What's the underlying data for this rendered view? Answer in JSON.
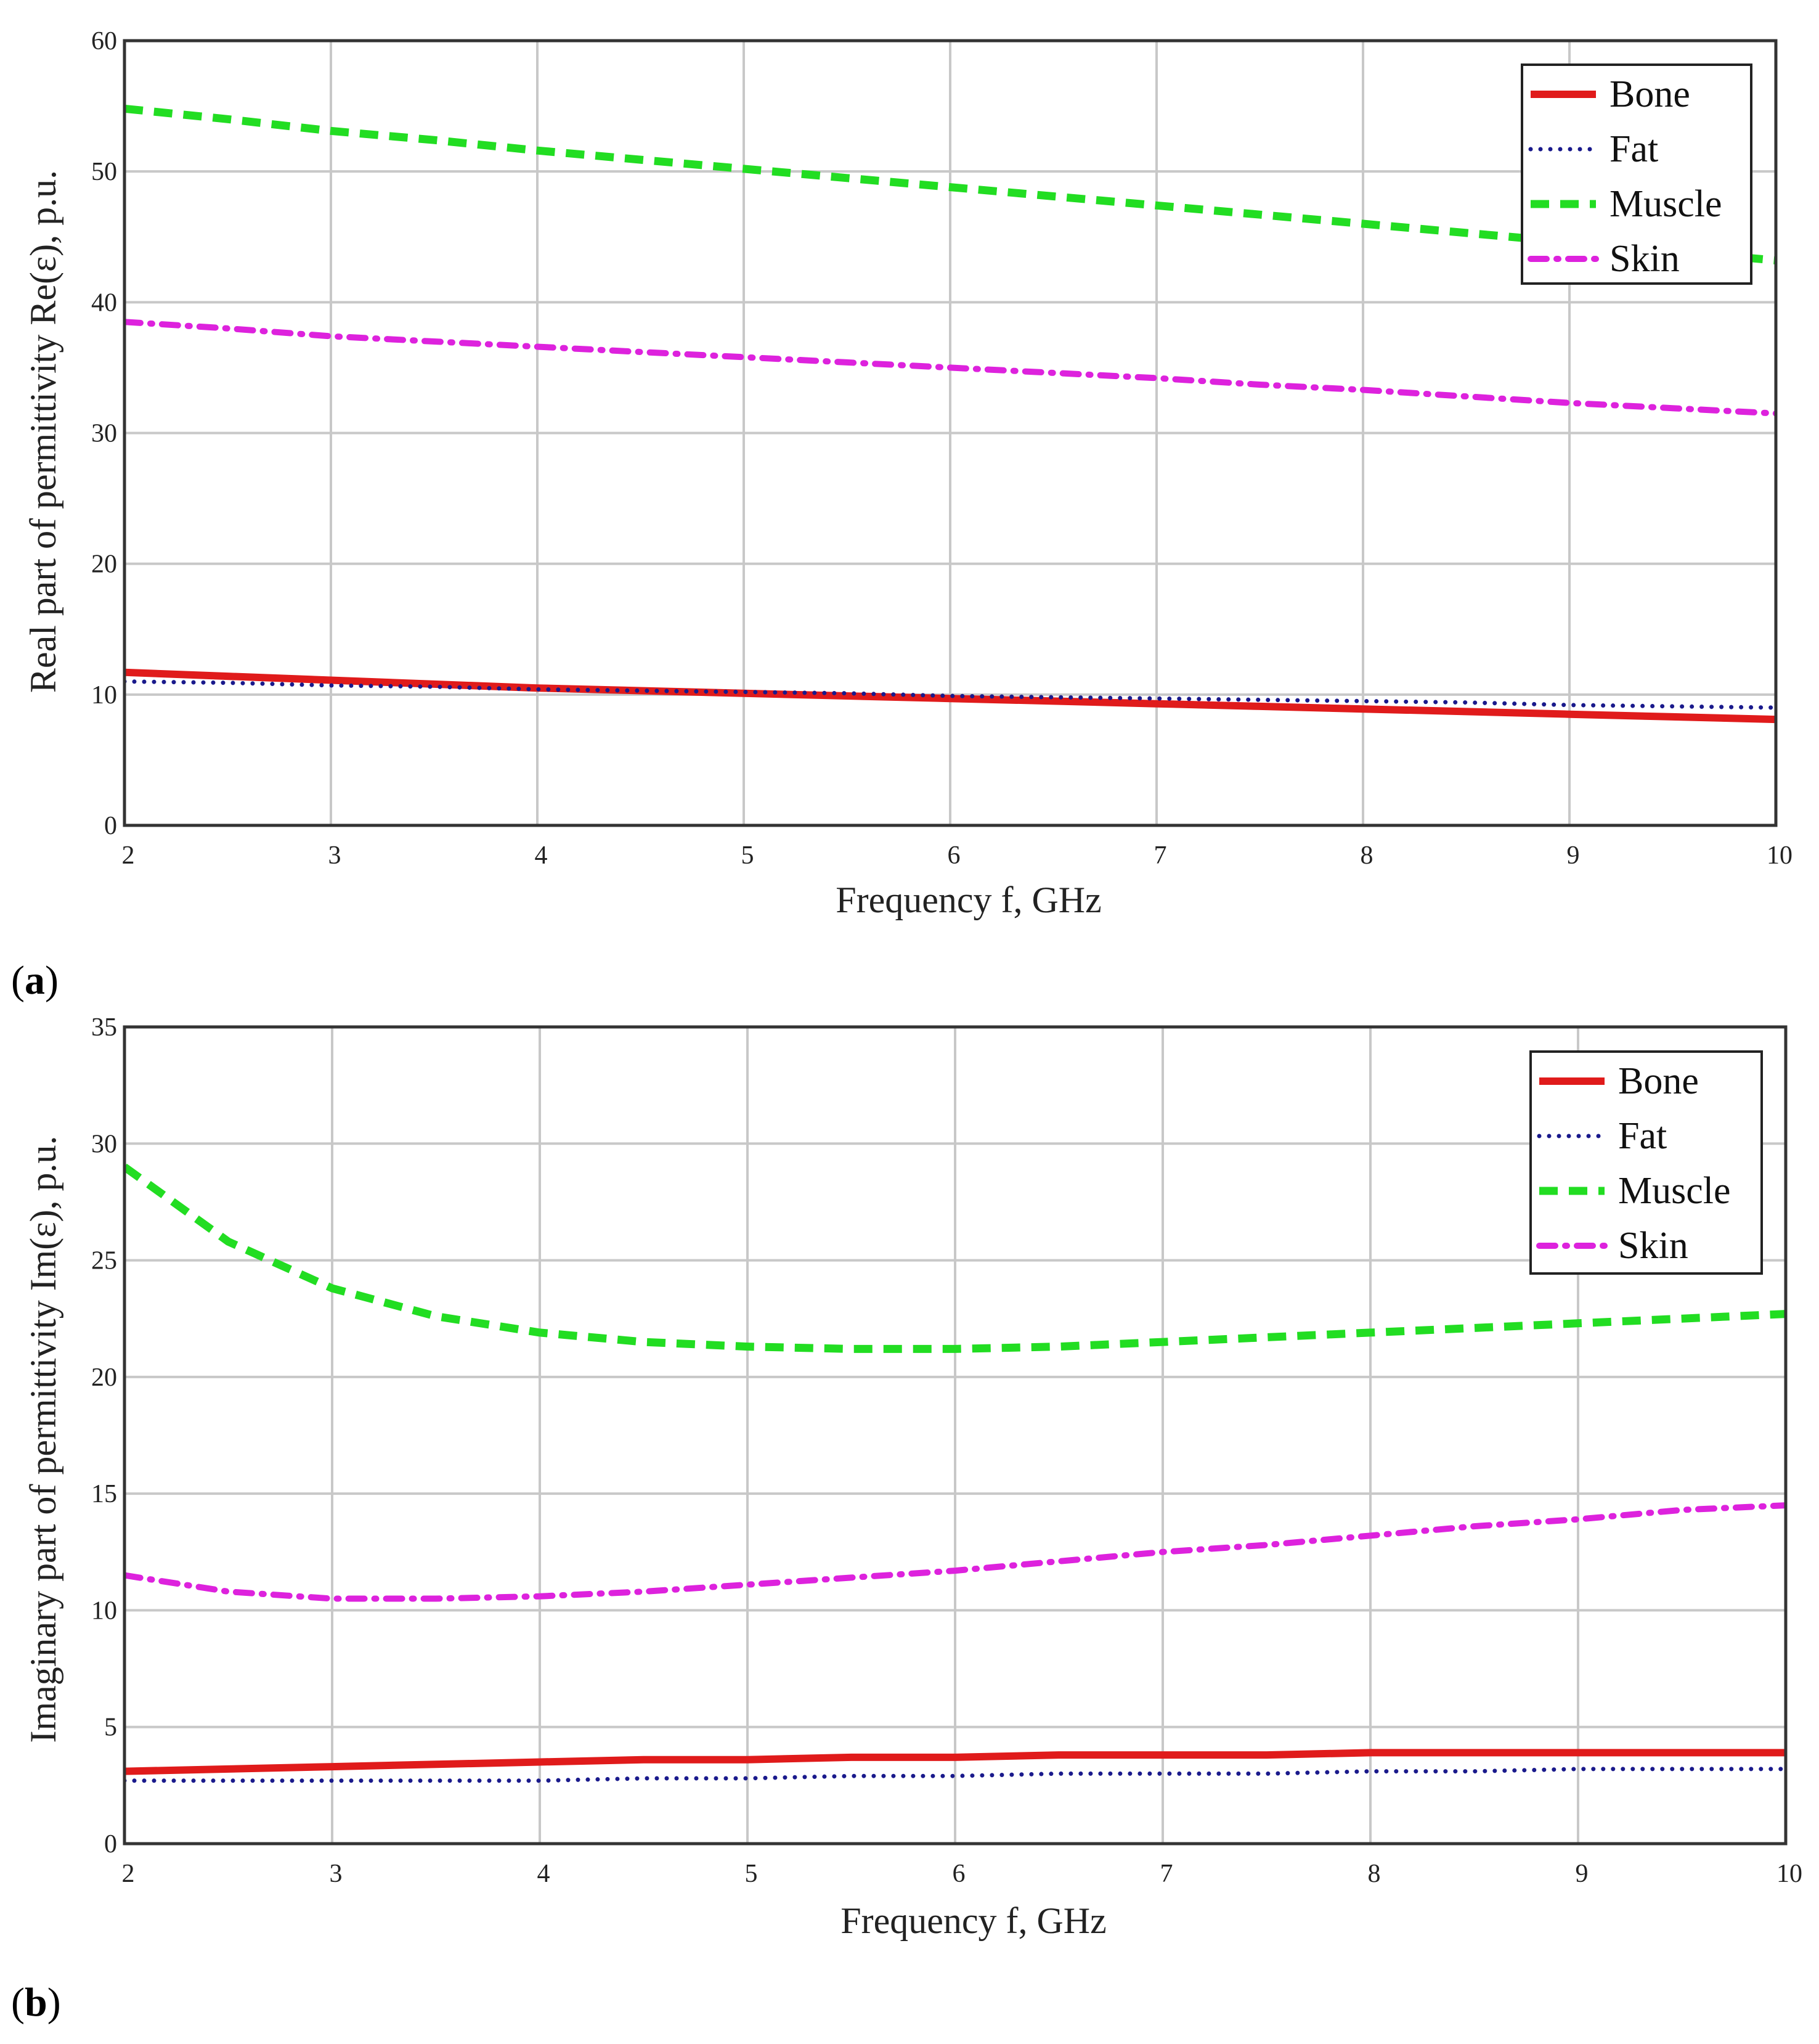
{
  "colors": {
    "Bone": "#e01b1b",
    "Fat": "#1a1a8c",
    "Muscle": "#22dd22",
    "Skin": "#dd22dd",
    "grid": "#c8c8c8",
    "frame": "#333333"
  },
  "chart_data": [
    {
      "type": "line",
      "panel_label": "a",
      "xlabel": "Frequency f, GHz",
      "ylabel": "Real part of permittivity Re(ε), p.u.",
      "xlim": [
        2,
        10
      ],
      "ylim": [
        0,
        60
      ],
      "xticks": [
        "2",
        "3",
        "4",
        "5",
        "6",
        "7",
        "8",
        "9",
        "10"
      ],
      "yticks": [
        "0",
        "10",
        "20",
        "30",
        "40",
        "50",
        "60"
      ],
      "grid": true,
      "legend_position": "top-right",
      "x": [
        2,
        2.5,
        3,
        3.5,
        4,
        4.5,
        5,
        5.5,
        6,
        6.5,
        7,
        7.5,
        8,
        8.5,
        9,
        9.5,
        10
      ],
      "series": [
        {
          "name": "Bone",
          "style": "solid",
          "values": [
            11.7,
            11.4,
            11.1,
            10.8,
            10.5,
            10.3,
            10.1,
            9.9,
            9.7,
            9.5,
            9.3,
            9.1,
            8.9,
            8.7,
            8.5,
            8.3,
            8.1
          ]
        },
        {
          "name": "Fat",
          "style": "dotted",
          "values": [
            11.0,
            10.9,
            10.7,
            10.6,
            10.4,
            10.3,
            10.2,
            10.1,
            9.9,
            9.8,
            9.7,
            9.6,
            9.5,
            9.4,
            9.2,
            9.1,
            9.0
          ]
        },
        {
          "name": "Muscle",
          "style": "dashed",
          "values": [
            54.8,
            54.0,
            53.1,
            52.4,
            51.6,
            50.9,
            50.2,
            49.5,
            48.8,
            48.1,
            47.4,
            46.7,
            46.0,
            45.3,
            44.6,
            43.9,
            43.2
          ]
        },
        {
          "name": "Skin",
          "style": "dashdot",
          "values": [
            38.5,
            38.0,
            37.4,
            37.0,
            36.6,
            36.2,
            35.8,
            35.4,
            35.0,
            34.6,
            34.2,
            33.7,
            33.3,
            32.8,
            32.3,
            31.9,
            31.5
          ]
        }
      ]
    },
    {
      "type": "line",
      "panel_label": "b",
      "xlabel": "Frequency f, GHz",
      "ylabel": "Imaginary part of permittivity Im(ε), p.u.",
      "xlim": [
        2,
        10
      ],
      "ylim": [
        0,
        35
      ],
      "xticks": [
        "2",
        "3",
        "4",
        "5",
        "6",
        "7",
        "8",
        "9",
        "10"
      ],
      "yticks": [
        "0",
        "5",
        "10",
        "15",
        "20",
        "25",
        "30",
        "35"
      ],
      "grid": true,
      "legend_position": "top-right",
      "x": [
        2,
        2.5,
        3,
        3.5,
        4,
        4.5,
        5,
        5.5,
        6,
        6.5,
        7,
        7.5,
        8,
        8.5,
        9,
        9.5,
        10
      ],
      "series": [
        {
          "name": "Bone",
          "style": "solid",
          "values": [
            3.1,
            3.2,
            3.3,
            3.4,
            3.5,
            3.6,
            3.6,
            3.7,
            3.7,
            3.8,
            3.8,
            3.8,
            3.9,
            3.9,
            3.9,
            3.9,
            3.9
          ]
        },
        {
          "name": "Fat",
          "style": "dotted",
          "values": [
            2.7,
            2.7,
            2.7,
            2.7,
            2.7,
            2.8,
            2.8,
            2.9,
            2.9,
            3.0,
            3.0,
            3.0,
            3.1,
            3.1,
            3.2,
            3.2,
            3.2
          ]
        },
        {
          "name": "Muscle",
          "style": "dashed",
          "values": [
            29.0,
            25.8,
            23.8,
            22.6,
            21.9,
            21.5,
            21.3,
            21.2,
            21.2,
            21.3,
            21.5,
            21.7,
            21.9,
            22.1,
            22.3,
            22.5,
            22.7
          ]
        },
        {
          "name": "Skin",
          "style": "dashdot",
          "values": [
            11.5,
            10.8,
            10.5,
            10.5,
            10.6,
            10.8,
            11.1,
            11.4,
            11.7,
            12.1,
            12.5,
            12.8,
            13.2,
            13.6,
            13.9,
            14.3,
            14.5
          ]
        }
      ]
    }
  ]
}
